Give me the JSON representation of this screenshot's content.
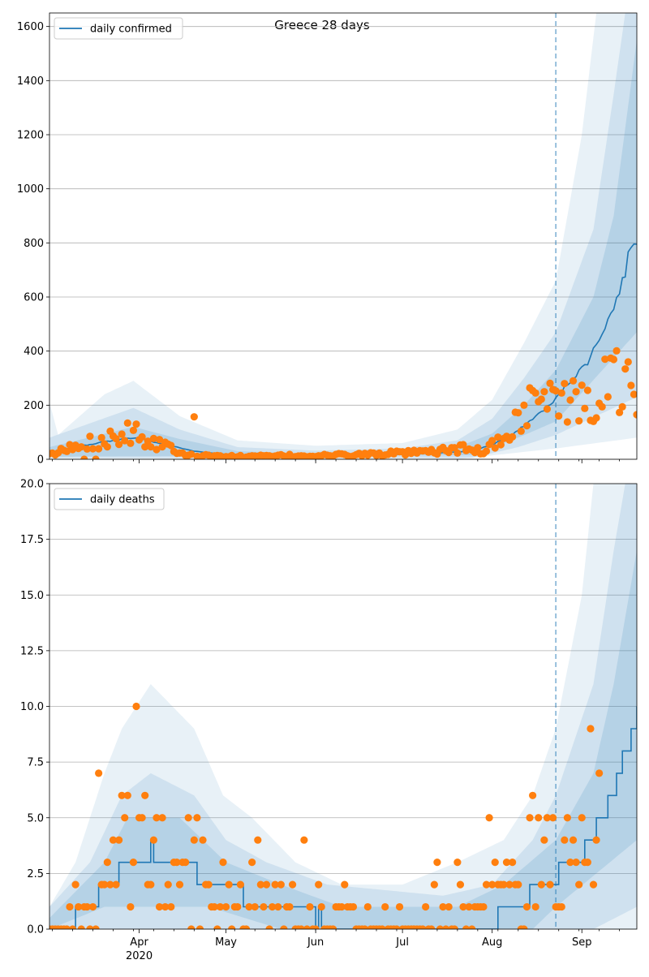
{
  "figure": {
    "title": "Greece 28 days"
  },
  "colors": {
    "line": "#1f77b4",
    "band": "#1f77b4",
    "obs": "#ff7f0e",
    "grid": "#b0b0b0"
  },
  "chart_data": [
    {
      "type": "line",
      "title": "Greece 28 days",
      "xlabel": "",
      "ylabel": "",
      "ylim": [
        0,
        1650
      ],
      "yticks": [
        0,
        200,
        400,
        600,
        800,
        1000,
        1200,
        1400,
        1600
      ],
      "ytick_labels": [
        "0",
        "200",
        "400",
        "600",
        "800",
        "1000",
        "1200",
        "1400",
        "1600"
      ],
      "x_start": "2020-03-01",
      "x_end": "2020-09-20",
      "xticks": [
        {
          "date": "2020-04-01",
          "label": "Apr"
        },
        {
          "date": "2020-05-01",
          "label": "May"
        },
        {
          "date": "2020-06-01",
          "label": "Jun"
        },
        {
          "date": "2020-07-01",
          "label": "Jul"
        },
        {
          "date": "2020-08-01",
          "label": "Aug"
        },
        {
          "date": "2020-09-01",
          "label": "Sep"
        }
      ],
      "year_label": {
        "date": "2020-04-01",
        "label": "2020"
      },
      "forecast_start": "2020-08-23",
      "grid": "y",
      "legend": {
        "position": "top-left",
        "label": "daily confirmed"
      },
      "median_knots": [
        [
          "2020-03-01",
          20
        ],
        [
          "2020-03-10",
          45
        ],
        [
          "2020-03-20",
          65
        ],
        [
          "2020-03-30",
          80
        ],
        [
          "2020-04-08",
          60
        ],
        [
          "2020-04-20",
          30
        ],
        [
          "2020-05-01",
          18
        ],
        [
          "2020-05-15",
          12
        ],
        [
          "2020-06-01",
          8
        ],
        [
          "2020-06-15",
          12
        ],
        [
          "2020-07-01",
          18
        ],
        [
          "2020-07-15",
          25
        ],
        [
          "2020-07-25",
          30
        ],
        [
          "2020-08-01",
          55
        ],
        [
          "2020-08-08",
          90
        ],
        [
          "2020-08-15",
          150
        ],
        [
          "2020-08-22",
          210
        ],
        [
          "2020-08-28",
          290
        ],
        [
          "2020-09-03",
          360
        ],
        [
          "2020-09-08",
          470
        ],
        [
          "2020-09-12",
          560
        ],
        [
          "2020-09-16",
          690
        ],
        [
          "2020-09-18",
          800
        ],
        [
          "2020-09-20",
          815
        ]
      ],
      "bands": [
        {
          "level": "outer",
          "lower": [
            [
              "2020-03-01",
              0
            ],
            [
              "2020-07-20",
              0
            ],
            [
              "2020-08-10",
              25
            ],
            [
              "2020-08-23",
              40
            ],
            [
              "2020-09-20",
              80
            ]
          ],
          "upper": [
            [
              "2020-03-01",
              210
            ],
            [
              "2020-03-04",
              90
            ],
            [
              "2020-03-20",
              240
            ],
            [
              "2020-03-30",
              290
            ],
            [
              "2020-04-15",
              160
            ],
            [
              "2020-05-05",
              70
            ],
            [
              "2020-06-01",
              50
            ],
            [
              "2020-07-01",
              60
            ],
            [
              "2020-07-20",
              110
            ],
            [
              "2020-08-01",
              220
            ],
            [
              "2020-08-12",
              430
            ],
            [
              "2020-08-23",
              660
            ],
            [
              "2020-09-01",
              1200
            ],
            [
              "2020-09-06",
              1650
            ],
            [
              "2020-09-20",
              1650
            ]
          ]
        },
        {
          "level": "mid",
          "lower": [
            [
              "2020-03-01",
              5
            ],
            [
              "2020-07-25",
              5
            ],
            [
              "2020-08-10",
              45
            ],
            [
              "2020-08-23",
              90
            ],
            [
              "2020-09-20",
              230
            ]
          ],
          "upper": [
            [
              "2020-03-01",
              80
            ],
            [
              "2020-03-30",
              190
            ],
            [
              "2020-04-15",
              110
            ],
            [
              "2020-05-05",
              45
            ],
            [
              "2020-06-01",
              32
            ],
            [
              "2020-07-01",
              40
            ],
            [
              "2020-07-20",
              70
            ],
            [
              "2020-08-01",
              150
            ],
            [
              "2020-08-12",
              300
            ],
            [
              "2020-08-23",
              470
            ],
            [
              "2020-09-05",
              850
            ],
            [
              "2020-09-12",
              1350
            ],
            [
              "2020-09-16",
              1650
            ],
            [
              "2020-09-20",
              1650
            ]
          ]
        },
        {
          "level": "inner",
          "lower": [
            [
              "2020-03-01",
              10
            ],
            [
              "2020-04-20",
              12
            ],
            [
              "2020-07-25",
              15
            ],
            [
              "2020-08-10",
              80
            ],
            [
              "2020-08-23",
              140
            ],
            [
              "2020-09-20",
              470
            ]
          ],
          "upper": [
            [
              "2020-03-01",
              45
            ],
            [
              "2020-03-30",
              120
            ],
            [
              "2020-04-15",
              75
            ],
            [
              "2020-05-05",
              30
            ],
            [
              "2020-06-01",
              20
            ],
            [
              "2020-07-01",
              28
            ],
            [
              "2020-07-20",
              45
            ],
            [
              "2020-08-01",
              95
            ],
            [
              "2020-08-12",
              200
            ],
            [
              "2020-08-23",
              330
            ],
            [
              "2020-09-05",
              600
            ],
            [
              "2020-09-12",
              900
            ],
            [
              "2020-09-20",
              1550
            ]
          ]
        }
      ],
      "observed_knots": [
        [
          "2020-03-01",
          15
        ],
        [
          "2020-03-08",
          40
        ],
        [
          "2020-03-15",
          60
        ],
        [
          "2020-03-22",
          85
        ],
        [
          "2020-03-29",
          105
        ],
        [
          "2020-04-04",
          70
        ],
        [
          "2020-04-10",
          55
        ],
        [
          "2020-04-15",
          30
        ],
        [
          "2020-04-21",
          12
        ],
        [
          "2020-05-05",
          10
        ],
        [
          "2020-05-20",
          12
        ],
        [
          "2020-06-10",
          15
        ],
        [
          "2020-06-25",
          20
        ],
        [
          "2020-07-10",
          25
        ],
        [
          "2020-07-20",
          40
        ],
        [
          "2020-07-28",
          30
        ],
        [
          "2020-08-03",
          60
        ],
        [
          "2020-08-07",
          110
        ],
        [
          "2020-08-12",
          180
        ],
        [
          "2020-08-17",
          220
        ],
        [
          "2020-08-22",
          250
        ],
        [
          "2020-08-27",
          200
        ],
        [
          "2020-09-03",
          200
        ],
        [
          "2020-09-08",
          210
        ],
        [
          "2020-09-12",
          280
        ],
        [
          "2020-09-16",
          320
        ],
        [
          "2020-09-20",
          260
        ]
      ],
      "observed_notes": [
        [
          "2020-04-20",
          157
        ],
        [
          "2020-03-31",
          130
        ],
        [
          "2020-03-13",
          0
        ],
        [
          "2020-03-17",
          0
        ],
        [
          "2020-03-19",
          80
        ],
        [
          "2020-09-09",
          370
        ],
        [
          "2020-08-29",
          290
        ],
        [
          "2020-09-20",
          165
        ],
        [
          "2020-09-17",
          360
        ],
        [
          "2020-09-19",
          240
        ],
        [
          "2020-08-24",
          160
        ],
        [
          "2020-09-05",
          140
        ],
        [
          "2020-08-16",
          245
        ],
        [
          "2020-08-19",
          250
        ],
        [
          "2020-08-12",
          200
        ]
      ]
    },
    {
      "type": "line",
      "xlabel": "",
      "ylabel": "",
      "ylim": [
        0,
        20
      ],
      "yticks": [
        0,
        2.5,
        5,
        7.5,
        10,
        12.5,
        15,
        17.5,
        20
      ],
      "ytick_labels": [
        "0.0",
        "2.5",
        "5.0",
        "7.5",
        "10.0",
        "12.5",
        "15.0",
        "17.5",
        "20.0"
      ],
      "x_start": "2020-03-01",
      "x_end": "2020-09-20",
      "xticks": [
        {
          "date": "2020-04-01",
          "label": "Apr"
        },
        {
          "date": "2020-05-01",
          "label": "May"
        },
        {
          "date": "2020-06-01",
          "label": "Jun"
        },
        {
          "date": "2020-07-01",
          "label": "Jul"
        },
        {
          "date": "2020-08-01",
          "label": "Aug"
        },
        {
          "date": "2020-09-01",
          "label": "Sep"
        }
      ],
      "year_label": {
        "date": "2020-04-01",
        "label": "2020"
      },
      "forecast_start": "2020-08-23",
      "grid": "y",
      "legend": {
        "position": "top-left",
        "label": "daily deaths"
      },
      "median_steps": [
        [
          "2020-03-01",
          0
        ],
        [
          "2020-03-10",
          1
        ],
        [
          "2020-03-18",
          2
        ],
        [
          "2020-03-25",
          3
        ],
        [
          "2020-04-05",
          4
        ],
        [
          "2020-04-06",
          3
        ],
        [
          "2020-04-21",
          2
        ],
        [
          "2020-05-07",
          1
        ],
        [
          "2020-05-14",
          1
        ],
        [
          "2020-06-01",
          0
        ],
        [
          "2020-06-02",
          1
        ],
        [
          "2020-06-03",
          0
        ],
        [
          "2020-06-10",
          0
        ],
        [
          "2020-07-01",
          0
        ],
        [
          "2020-07-10",
          0
        ],
        [
          "2020-08-01",
          0
        ],
        [
          "2020-08-03",
          1
        ],
        [
          "2020-08-14",
          2
        ],
        [
          "2020-08-22",
          2
        ],
        [
          "2020-08-24",
          3
        ],
        [
          "2020-09-02",
          4
        ],
        [
          "2020-09-06",
          5
        ],
        [
          "2020-09-10",
          6
        ],
        [
          "2020-09-13",
          7
        ],
        [
          "2020-09-15",
          8
        ],
        [
          "2020-09-18",
          9
        ],
        [
          "2020-09-20",
          10
        ]
      ],
      "bands": [
        {
          "level": "outer",
          "lower": [
            [
              "2020-03-01",
              0
            ],
            [
              "2020-09-20",
              0
            ]
          ],
          "upper": [
            [
              "2020-03-01",
              1
            ],
            [
              "2020-03-10",
              3
            ],
            [
              "2020-03-20",
              7
            ],
            [
              "2020-03-26",
              9
            ],
            [
              "2020-04-05",
              11
            ],
            [
              "2020-04-20",
              9
            ],
            [
              "2020-04-30",
              6
            ],
            [
              "2020-05-10",
              5
            ],
            [
              "2020-05-25",
              3
            ],
            [
              "2020-06-10",
              2
            ],
            [
              "2020-07-01",
              2
            ],
            [
              "2020-07-20",
              3
            ],
            [
              "2020-08-05",
              4
            ],
            [
              "2020-08-15",
              6
            ],
            [
              "2020-08-23",
              9
            ],
            [
              "2020-09-01",
              15
            ],
            [
              "2020-09-05",
              20
            ],
            [
              "2020-09-20",
              20
            ]
          ]
        },
        {
          "level": "mid",
          "lower": [
            [
              "2020-03-01",
              0
            ],
            [
              "2020-08-23",
              0
            ],
            [
              "2020-09-05",
              0
            ],
            [
              "2020-09-20",
              1
            ]
          ],
          "upper": [
            [
              "2020-03-01",
              1
            ],
            [
              "2020-03-15",
              3
            ],
            [
              "2020-03-26",
              6
            ],
            [
              "2020-04-05",
              7
            ],
            [
              "2020-04-20",
              6
            ],
            [
              "2020-05-01",
              4
            ],
            [
              "2020-05-15",
              3
            ],
            [
              "2020-06-05",
              2
            ],
            [
              "2020-07-15",
              1.5
            ],
            [
              "2020-08-01",
              2
            ],
            [
              "2020-08-15",
              4
            ],
            [
              "2020-08-23",
              6
            ],
            [
              "2020-09-05",
              11
            ],
            [
              "2020-09-12",
              17
            ],
            [
              "2020-09-16",
              20
            ],
            [
              "2020-09-20",
              20
            ]
          ]
        },
        {
          "level": "inner",
          "lower": [
            [
              "2020-03-01",
              0
            ],
            [
              "2020-03-20",
              1
            ],
            [
              "2020-04-25",
              1
            ],
            [
              "2020-05-20",
              0
            ],
            [
              "2020-08-15",
              0
            ],
            [
              "2020-08-23",
              1
            ],
            [
              "2020-09-20",
              4
            ]
          ],
          "upper": [
            [
              "2020-03-01",
              0.5
            ],
            [
              "2020-03-20",
              3
            ],
            [
              "2020-03-28",
              5
            ],
            [
              "2020-04-15",
              5
            ],
            [
              "2020-05-01",
              3
            ],
            [
              "2020-05-20",
              2
            ],
            [
              "2020-06-10",
              1
            ],
            [
              "2020-07-20",
              1
            ],
            [
              "2020-08-05",
              2
            ],
            [
              "2020-08-23",
              4
            ],
            [
              "2020-09-05",
              7
            ],
            [
              "2020-09-12",
              11
            ],
            [
              "2020-09-20",
              17
            ]
          ]
        }
      ],
      "observed_values": [
        0,
        0,
        0,
        0,
        0,
        0,
        0,
        1,
        0,
        2,
        1,
        0,
        1,
        1,
        0,
        1,
        0,
        7,
        2,
        2,
        3,
        2,
        4,
        2,
        4,
        6,
        5,
        6,
        1,
        3,
        10,
        5,
        5,
        6,
        2,
        2,
        4,
        5,
        1,
        5,
        1,
        2,
        1,
        3,
        3,
        2,
        3,
        3,
        5,
        0,
        4,
        5,
        0,
        4,
        2,
        2,
        1,
        1,
        0,
        1,
        3,
        1,
        2,
        0,
        1,
        1,
        2,
        0,
        0,
        1,
        3,
        1,
        4,
        2,
        1,
        2,
        0,
        1,
        2,
        1,
        2,
        0,
        1,
        1,
        2,
        0,
        0,
        0,
        4,
        0,
        1,
        0,
        0,
        2,
        1,
        0,
        0,
        0,
        0,
        1,
        1,
        1,
        2,
        1,
        1,
        1,
        0,
        0,
        0,
        0,
        1,
        0,
        0,
        0,
        0,
        0,
        1,
        0,
        0,
        0,
        0,
        1,
        0,
        0,
        0,
        0,
        0,
        0,
        0,
        0,
        1,
        0,
        0,
        2,
        3,
        0,
        1,
        0,
        1,
        0,
        0,
        3,
        2,
        1,
        0,
        1,
        0,
        1,
        1,
        1,
        1,
        2,
        5,
        2,
        3,
        2,
        2,
        2,
        3,
        2,
        3,
        2,
        2,
        0,
        0,
        1,
        5,
        6,
        1,
        5,
        2,
        4,
        5,
        2,
        5,
        1,
        1,
        1,
        4,
        5,
        3,
        4,
        3,
        2,
        5,
        3,
        3,
        9,
        2,
        4,
        7
      ]
    }
  ]
}
